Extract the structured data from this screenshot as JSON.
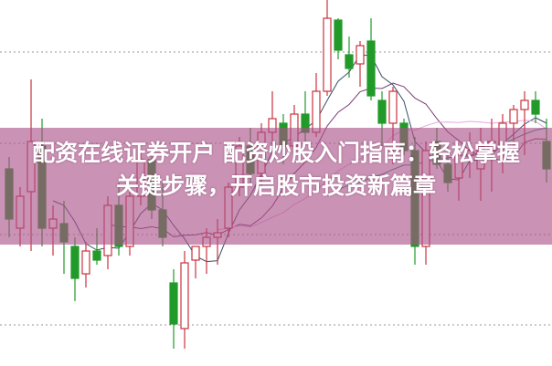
{
  "title": {
    "line1": "配资在线证券开户 配资炒股入门指南：轻松掌握",
    "line2": "关键步骤，开启股市投资新篇章"
  },
  "colors": {
    "up": "#c8323c",
    "down": "#229a2a",
    "banner": "#b86a9a",
    "ma5": "#3a4f6a",
    "ma10": "#7a3a70",
    "ma20": "#e6a8e0",
    "ma30": "#2a8a8a"
  },
  "chart_data": {
    "type": "candlestick",
    "title": "",
    "xlabel": "",
    "ylabel": "",
    "ylim": [
      0,
      400
    ],
    "grid": "dotted-horizontal",
    "moving_averages": [
      5,
      10,
      20,
      30
    ],
    "candles": [
      [
        215,
        228,
        140,
        160
      ],
      [
        150,
        195,
        130,
        185
      ],
      [
        190,
        313,
        125,
        245
      ],
      [
        240,
        270,
        130,
        150
      ],
      [
        150,
        175,
        120,
        160
      ],
      [
        155,
        180,
        100,
        135
      ],
      [
        130,
        140,
        70,
        95
      ],
      [
        100,
        135,
        85,
        125
      ],
      [
        125,
        150,
        110,
        115
      ],
      [
        120,
        185,
        105,
        175
      ],
      [
        175,
        200,
        120,
        130
      ],
      [
        130,
        190,
        120,
        185
      ],
      [
        185,
        235,
        175,
        225
      ],
      [
        225,
        230,
        160,
        170
      ],
      [
        170,
        200,
        130,
        140
      ],
      [
        90,
        105,
        18,
        45
      ],
      [
        40,
        125,
        18,
        112
      ],
      [
        115,
        130,
        95,
        130
      ],
      [
        130,
        150,
        100,
        140
      ],
      [
        140,
        160,
        110,
        145
      ],
      [
        150,
        200,
        140,
        195
      ],
      [
        195,
        250,
        185,
        240
      ],
      [
        240,
        260,
        200,
        210
      ],
      [
        210,
        265,
        195,
        255
      ],
      [
        255,
        300,
        240,
        270
      ],
      [
        265,
        275,
        220,
        240
      ],
      [
        240,
        285,
        225,
        275
      ],
      [
        275,
        300,
        245,
        255
      ],
      [
        255,
        320,
        250,
        300
      ],
      [
        300,
        400,
        295,
        380
      ],
      [
        378,
        380,
        335,
        345
      ],
      [
        340,
        360,
        315,
        325
      ],
      [
        330,
        355,
        305,
        350
      ],
      [
        355,
        380,
        290,
        295
      ],
      [
        290,
        300,
        240,
        265
      ],
      [
        265,
        305,
        220,
        300
      ],
      [
        265,
        270,
        230,
        235
      ],
      [
        235,
        250,
        110,
        130
      ],
      [
        130,
        245,
        110,
        235
      ],
      [
        245,
        260,
        215,
        220
      ],
      [
        220,
        240,
        190,
        200
      ],
      [
        205,
        235,
        180,
        230
      ],
      [
        230,
        255,
        205,
        235
      ],
      [
        215,
        260,
        180,
        240
      ],
      [
        235,
        270,
        190,
        245
      ],
      [
        240,
        275,
        210,
        265
      ],
      [
        265,
        285,
        235,
        280
      ],
      [
        280,
        300,
        230,
        290
      ],
      [
        290,
        300,
        265,
        275
      ],
      [
        245,
        270,
        200,
        215
      ]
    ]
  }
}
